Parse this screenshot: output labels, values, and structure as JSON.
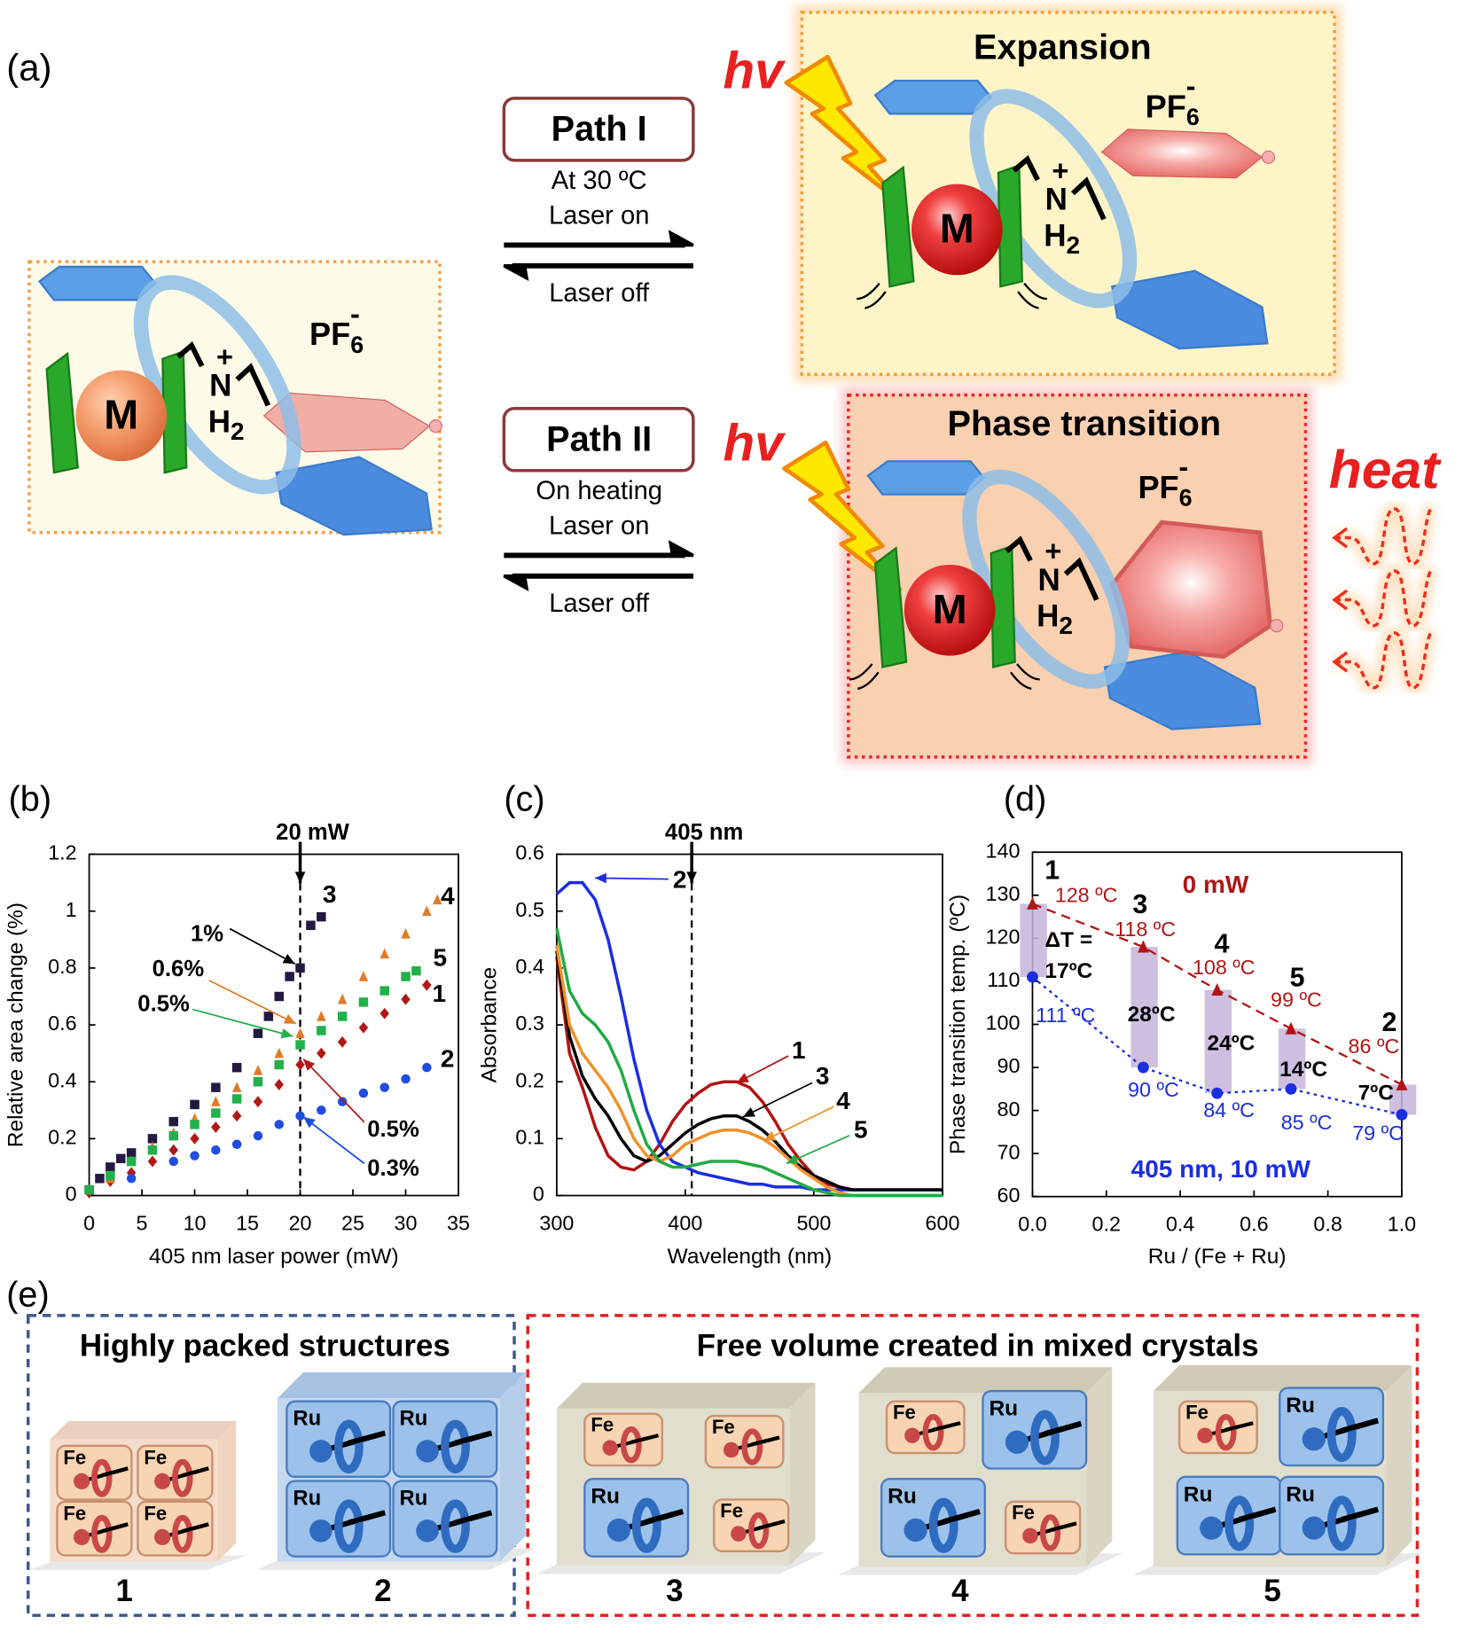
{
  "panel_a": {
    "label": "(a)",
    "path_1": {
      "title": "Path I",
      "condition": "At 30 ºC",
      "forward": "Laser on",
      "backward": "Laser off"
    },
    "path_2": {
      "title": "Path II",
      "condition": "On heating",
      "forward": "Laser on",
      "backward": "Laser off"
    },
    "light_labels": [
      "hv",
      "hv"
    ],
    "expansion_title": "Expansion",
    "phase_title": "Phase transition",
    "heat_label": "heat",
    "molecules": [
      {
        "metal": "M",
        "anion": {
          "base": "PF",
          "sub": "6",
          "sup": "-"
        },
        "cation": {
          "charge": "+",
          "atom": "N",
          "h": "H",
          "h_sub": "2"
        }
      },
      {
        "metal": "M",
        "anion": {
          "base": "PF",
          "sub": "6",
          "sup": "-"
        },
        "cation": {
          "charge": "+",
          "atom": "N",
          "h": "H",
          "h_sub": "2"
        }
      },
      {
        "metal": "M",
        "anion": {
          "base": "PF",
          "sub": "6",
          "sup": "-"
        },
        "cation": {
          "charge": "+",
          "atom": "N",
          "h": "H",
          "h_sub": "2"
        }
      }
    ]
  },
  "chart_data": [
    {
      "label": "(b)",
      "type": "scatter",
      "xlabel": "405 nm laser power (mW)",
      "ylabel": "Relative area change (%)",
      "xlim": [
        0,
        35
      ],
      "xticks": [
        0,
        5,
        10,
        15,
        20,
        25,
        30,
        35
      ],
      "ylim": [
        0,
        1.2
      ],
      "yticks": [
        0,
        0.2,
        0.4,
        0.6,
        0.8,
        1,
        1.2
      ],
      "reference_line": {
        "value": 20,
        "label": "20 mW"
      },
      "series": [
        {
          "name": "1",
          "color": "#b01818",
          "marker": "diamond",
          "x": [
            0,
            2,
            4,
            6,
            8,
            10,
            12,
            14,
            16,
            18,
            20,
            22,
            24,
            26,
            28,
            30,
            32
          ],
          "values": [
            0.01,
            0.05,
            0.08,
            0.12,
            0.16,
            0.2,
            0.24,
            0.28,
            0.33,
            0.39,
            0.46,
            0.5,
            0.54,
            0.59,
            0.64,
            0.69,
            0.74
          ]
        },
        {
          "name": "2",
          "color": "#1f4de0",
          "marker": "circle",
          "x": [
            0,
            4,
            8,
            10,
            12,
            14,
            16,
            18,
            20,
            22,
            24,
            26,
            28,
            30,
            32
          ],
          "values": [
            0.02,
            0.06,
            0.12,
            0.14,
            0.16,
            0.18,
            0.21,
            0.25,
            0.28,
            0.3,
            0.33,
            0.36,
            0.38,
            0.41,
            0.45
          ]
        },
        {
          "name": "3",
          "color": "#231942",
          "marker": "square",
          "x": [
            0,
            1,
            2,
            3,
            4,
            6,
            8,
            10,
            12,
            14,
            16,
            17,
            18,
            19,
            20,
            21,
            22
          ],
          "values": [
            0.02,
            0.06,
            0.1,
            0.13,
            0.15,
            0.2,
            0.26,
            0.32,
            0.38,
            0.45,
            0.57,
            0.63,
            0.7,
            0.77,
            0.8,
            0.95,
            0.98
          ]
        },
        {
          "name": "4",
          "color": "#e07b28",
          "marker": "triangle",
          "x": [
            0,
            2,
            4,
            6,
            8,
            10,
            12,
            14,
            16,
            18,
            20,
            22,
            24,
            26,
            28,
            30,
            32,
            33
          ],
          "values": [
            0.02,
            0.06,
            0.12,
            0.17,
            0.22,
            0.27,
            0.33,
            0.38,
            0.44,
            0.5,
            0.57,
            0.63,
            0.69,
            0.77,
            0.85,
            0.92,
            1,
            1.04
          ]
        },
        {
          "name": "5",
          "color": "#22b04a",
          "marker": "square",
          "x": [
            0,
            2,
            4,
            6,
            8,
            10,
            12,
            14,
            16,
            18,
            20,
            22,
            24,
            26,
            28,
            30,
            31
          ],
          "values": [
            0.02,
            0.07,
            0.12,
            0.16,
            0.21,
            0.25,
            0.29,
            0.34,
            0.4,
            0.46,
            0.53,
            0.58,
            0.63,
            0.68,
            0.72,
            0.77,
            0.79
          ]
        }
      ],
      "annotations": [
        {
          "text": "1%",
          "color": "#000000"
        },
        {
          "text": "0.6%",
          "color": "#e07b28"
        },
        {
          "text": "0.5%",
          "color": "#22b04a"
        },
        {
          "text": "0.5%",
          "color": "#b01818"
        },
        {
          "text": "0.3%",
          "color": "#1f4de0"
        }
      ]
    },
    {
      "label": "(c)",
      "type": "line",
      "xlabel": "Wavelength (nm)",
      "ylabel": "Absorbance",
      "xlim": [
        300,
        600
      ],
      "xticks": [
        300,
        400,
        500,
        600
      ],
      "ylim": [
        0,
        0.6
      ],
      "yticks": [
        0,
        0.1,
        0.2,
        0.3,
        0.4,
        0.5,
        0.6
      ],
      "reference_line": {
        "value": 405,
        "label": "405 nm"
      },
      "x": [
        300,
        310,
        320,
        330,
        340,
        350,
        360,
        370,
        380,
        390,
        400,
        410,
        420,
        430,
        440,
        450,
        460,
        470,
        480,
        490,
        500,
        510,
        520,
        530,
        540,
        550,
        560,
        570,
        580,
        590,
        600
      ],
      "series": [
        {
          "name": "1",
          "color": "#b01515",
          "values": [
            0.42,
            0.25,
            0.19,
            0.12,
            0.07,
            0.05,
            0.045,
            0.06,
            0.09,
            0.13,
            0.16,
            0.18,
            0.195,
            0.2,
            0.2,
            0.19,
            0.165,
            0.13,
            0.09,
            0.06,
            0.035,
            0.02,
            0.015,
            0.01,
            0.01,
            0.01,
            0.01,
            0.01,
            0.01,
            0.01,
            0.01
          ]
        },
        {
          "name": "2",
          "color": "#1a2ee0",
          "values": [
            0.53,
            0.55,
            0.55,
            0.52,
            0.45,
            0.35,
            0.24,
            0.15,
            0.09,
            0.06,
            0.05,
            0.04,
            0.035,
            0.03,
            0.025,
            0.02,
            0.02,
            0.015,
            0.015,
            0.015,
            0.01,
            0.01,
            0.01,
            0.01,
            0.01,
            0.01,
            0.01,
            0.01,
            0.01,
            0.01,
            0.01
          ]
        },
        {
          "name": "3",
          "color": "#000000",
          "values": [
            0.43,
            0.28,
            0.21,
            0.17,
            0.14,
            0.1,
            0.07,
            0.06,
            0.07,
            0.09,
            0.11,
            0.125,
            0.135,
            0.14,
            0.14,
            0.13,
            0.115,
            0.095,
            0.07,
            0.05,
            0.035,
            0.025,
            0.015,
            0.01,
            0.01,
            0.01,
            0.01,
            0.01,
            0.01,
            0.01,
            0.01
          ]
        },
        {
          "name": "4",
          "color": "#f0922b",
          "values": [
            0.44,
            0.3,
            0.25,
            0.22,
            0.19,
            0.15,
            0.1,
            0.07,
            0.06,
            0.07,
            0.09,
            0.1,
            0.11,
            0.115,
            0.115,
            0.11,
            0.1,
            0.085,
            0.065,
            0.045,
            0.03,
            0.015,
            0.005,
            0,
            0,
            0,
            0,
            0,
            0,
            0,
            0
          ]
        },
        {
          "name": "5",
          "color": "#22aa44",
          "values": [
            0.47,
            0.36,
            0.32,
            0.3,
            0.27,
            0.22,
            0.15,
            0.09,
            0.06,
            0.05,
            0.05,
            0.055,
            0.06,
            0.06,
            0.06,
            0.055,
            0.05,
            0.04,
            0.03,
            0.02,
            0.01,
            0.005,
            0,
            0,
            0,
            0,
            0,
            0,
            0,
            0,
            0
          ]
        }
      ]
    },
    {
      "label": "(d)",
      "type": "line",
      "xlabel": "Ru / (Fe + Ru)",
      "ylabel": "Phase transition temp. (ºC)",
      "xlim": [
        0,
        1
      ],
      "xticks": [
        {
          "value": 0,
          "label": "0.0"
        },
        0.2,
        0.4,
        0.6,
        0.8,
        {
          "value": 1,
          "label": "1.0"
        }
      ],
      "ylim": [
        60,
        140
      ],
      "yticks": [
        60,
        70,
        80,
        90,
        100,
        110,
        120,
        130,
        140
      ],
      "x": [
        0,
        0.3,
        0.5,
        0.7,
        1
      ],
      "sample_labels": [
        "1",
        "3",
        "4",
        "5",
        "2"
      ],
      "series": [
        {
          "name": "0 mW",
          "color": "#b01515",
          "marker": "triangle",
          "dash": "dashed",
          "values": [
            128,
            118,
            108,
            99,
            86
          ],
          "value_labels": [
            "128 ºC",
            "118 ºC",
            "108 ºC",
            "99 ºC",
            "86 ºC"
          ]
        },
        {
          "name": "405 nm, 10 mW",
          "color": "#1a2ee0",
          "marker": "circle",
          "dash": "dotted",
          "values": [
            111,
            90,
            84,
            85,
            79
          ],
          "value_labels": [
            "111 ºC",
            "90 ºC",
            "84 ºC",
            "85 ºC",
            "79 ºC"
          ]
        }
      ],
      "differences": {
        "prefix": "ΔT =",
        "color": "#c6b4da",
        "values": [
          17,
          28,
          24,
          14,
          7
        ],
        "value_labels": [
          "17ºC",
          "28ºC",
          "24ºC",
          "14ºC",
          "7ºC"
        ]
      }
    }
  ],
  "panel_e": {
    "label": "(e)",
    "highly_packed_title": "Highly packed structures",
    "free_volume_title": "Free volume created in mixed crystals",
    "crystals": [
      {
        "number": "1",
        "cells": [
          "Fe",
          "Fe",
          "Fe",
          "Fe"
        ]
      },
      {
        "number": "2",
        "cells": [
          "Ru",
          "Ru",
          "Ru",
          "Ru"
        ]
      },
      {
        "number": "3",
        "cells": [
          "Fe",
          "Fe",
          "Ru",
          "Fe"
        ]
      },
      {
        "number": "4",
        "cells": [
          "Fe",
          "Ru",
          "Ru",
          "Fe"
        ]
      },
      {
        "number": "5",
        "cells": [
          "Fe",
          "Ru",
          "Ru",
          "Ru"
        ]
      }
    ]
  }
}
